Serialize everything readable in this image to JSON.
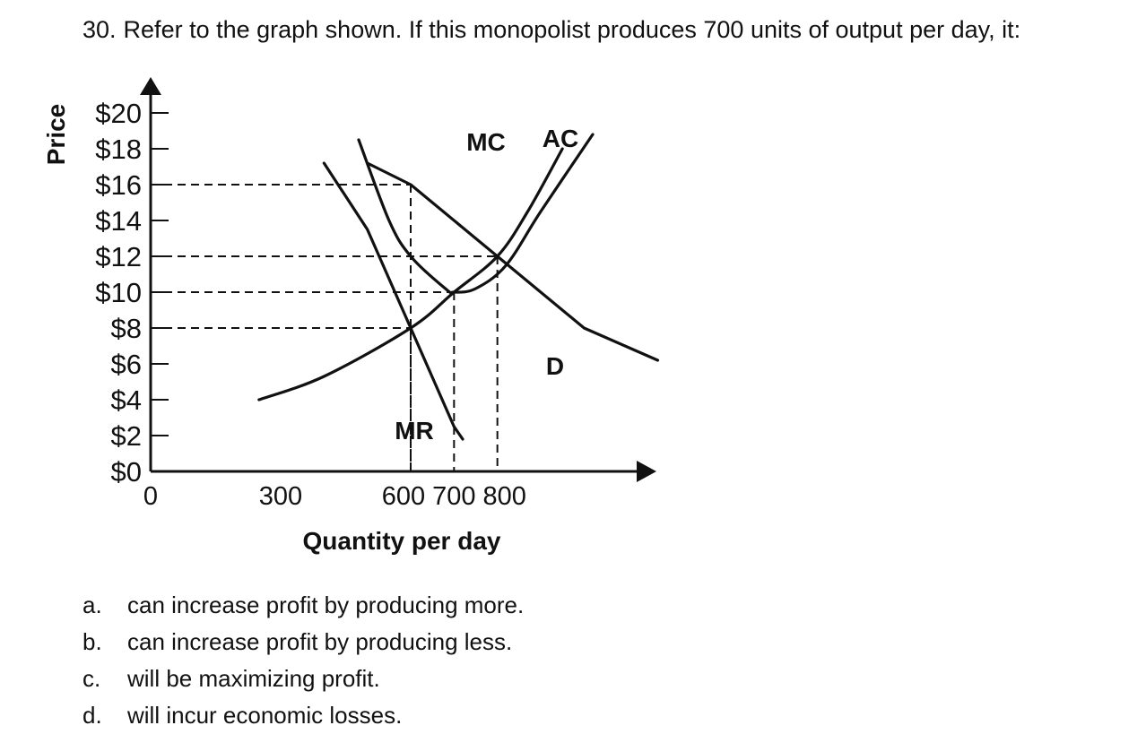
{
  "question": {
    "number": "30.",
    "text": "Refer to the graph shown. If this monopolist produces 700 units of output per day, it:"
  },
  "choices": [
    {
      "letter": "a.",
      "text": "can increase profit by producing more."
    },
    {
      "letter": "b.",
      "text": "can increase profit by producing less."
    },
    {
      "letter": "c.",
      "text": "will be maximizing profit."
    },
    {
      "letter": "d.",
      "text": "will incur economic losses."
    }
  ],
  "chart_data": {
    "type": "line",
    "xlabel": "Quantity per day",
    "ylabel": "Price",
    "xlim": [
      0,
      1200
    ],
    "ylim": [
      0,
      20
    ],
    "x_ticks": [
      {
        "value": 0,
        "label": "0"
      },
      {
        "value": 300,
        "label": "300"
      },
      {
        "value": 600,
        "label": "600"
      },
      {
        "value": 700,
        "label": "700"
      },
      {
        "value": 800,
        "label": "800"
      }
    ],
    "y_ticks": [
      {
        "value": 0,
        "label": "$0"
      },
      {
        "value": 2,
        "label": "$2"
      },
      {
        "value": 4,
        "label": "$4"
      },
      {
        "value": 6,
        "label": "$6"
      },
      {
        "value": 8,
        "label": "$8"
      },
      {
        "value": 10,
        "label": "$10"
      },
      {
        "value": 12,
        "label": "$12"
      },
      {
        "value": 14,
        "label": "$14"
      },
      {
        "value": 16,
        "label": "$16"
      },
      {
        "value": 18,
        "label": "$18"
      },
      {
        "value": 20,
        "label": "$20"
      }
    ],
    "series": [
      {
        "name": "D",
        "points": [
          [
            500,
            17.2
          ],
          [
            600,
            16
          ],
          [
            800,
            12
          ],
          [
            1000,
            8
          ],
          [
            1170,
            6.2
          ]
        ]
      },
      {
        "name": "MR",
        "points": [
          [
            400,
            17.2
          ],
          [
            500,
            13.5
          ],
          [
            600,
            8
          ],
          [
            700,
            2.5
          ],
          [
            720,
            1.8
          ]
        ]
      },
      {
        "name": "MC",
        "points": [
          [
            250,
            4
          ],
          [
            400,
            5.3
          ],
          [
            600,
            8
          ],
          [
            700,
            10
          ],
          [
            800,
            12
          ],
          [
            870,
            14.5
          ],
          [
            950,
            18
          ]
        ]
      },
      {
        "name": "AC",
        "points": [
          [
            480,
            18.5
          ],
          [
            550,
            14
          ],
          [
            600,
            12
          ],
          [
            680,
            10.2
          ],
          [
            700,
            10
          ],
          [
            750,
            10.2
          ],
          [
            820,
            11.5
          ],
          [
            900,
            14.5
          ],
          [
            1020,
            18.8
          ]
        ]
      }
    ],
    "reference_lines": [
      {
        "x": 600,
        "y": 16
      },
      {
        "x": 600,
        "y": 8
      },
      {
        "x": 700,
        "y": 10
      },
      {
        "x": 800,
        "y": 12
      }
    ],
    "grid": false,
    "colors": {
      "line": "#111111"
    }
  }
}
